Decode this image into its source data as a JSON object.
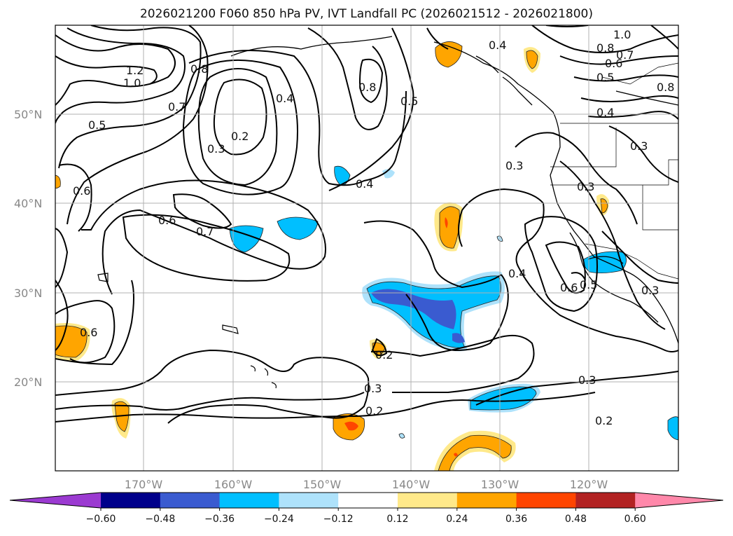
{
  "title": "2026021200 F060 850 hPa PV, IVT Landfall PC (2026021512 - 2026021800)",
  "lat_labels": [
    "50°N",
    "40°N",
    "30°N",
    "20°N"
  ],
  "lon_labels": [
    "170°W",
    "160°W",
    "150°W",
    "140°W",
    "130°W",
    "120°W"
  ],
  "colorbar": {
    "ticks": [
      "−0.60",
      "−0.48",
      "−0.36",
      "−0.24",
      "−0.12",
      "0.12",
      "0.24",
      "0.36",
      "0.48",
      "0.60"
    ],
    "colors": [
      "#9b3ad1",
      "#00008b",
      "#3a5bd0",
      "#00bfff",
      "#aee2fb",
      "#ffffff",
      "#ffe98a",
      "#ffa500",
      "#ff4500",
      "#b22222",
      "#ff88aa"
    ]
  },
  "contour_labels": [
    "1.2",
    "1.0",
    "0.8",
    "0.7",
    "0.5",
    "0.6",
    "0.4",
    "0.3",
    "0.2",
    "0.7",
    "0.6",
    "0.6",
    "0.4",
    "0.5",
    "0.8",
    "0.3",
    "0.3",
    "0.4",
    "0.6",
    "0.5",
    "0.3",
    "0.2",
    "0.3",
    "0.2",
    "0.3",
    "0.2",
    "1.0",
    "0.8",
    "0.7",
    "0.6",
    "0.5",
    "0.4",
    "0.8",
    "0.3",
    "0.4"
  ],
  "colors": {
    "orange": "#ffa500",
    "light_orange": "#ffe98a",
    "red": "#ff4500",
    "blue": "#00bfff",
    "light_blue": "#aee2fb",
    "royal": "#3a5bd0",
    "grid": "#b0b0b0"
  }
}
